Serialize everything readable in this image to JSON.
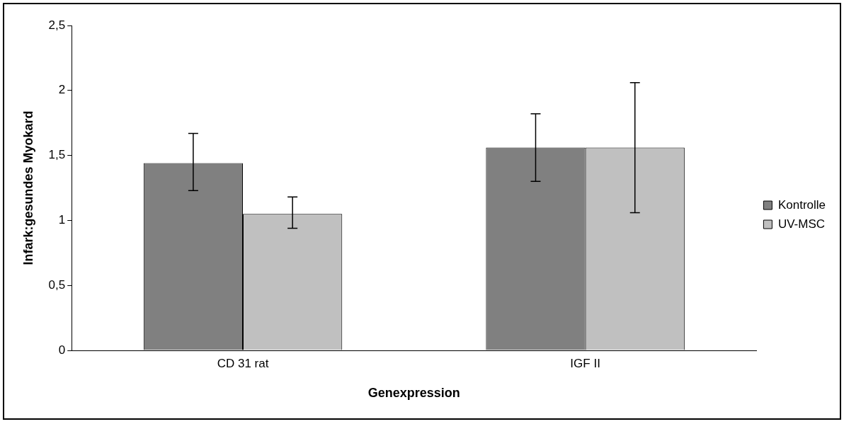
{
  "chart_data": {
    "type": "bar",
    "xlabel": "Genexpression",
    "ylabel": "Infark:gesundes Myokard",
    "categories": [
      "CD 31 rat",
      "IGF II"
    ],
    "series": [
      {
        "name": "Kontrolle",
        "color": "#808080",
        "values": [
          1.44,
          1.56
        ],
        "errors": [
          [
            1.23,
            1.67
          ],
          [
            1.3,
            1.82
          ]
        ]
      },
      {
        "name": "UV-MSC",
        "color": "#c0c0c0",
        "values": [
          1.05,
          1.56
        ],
        "errors": [
          [
            0.94,
            1.18
          ],
          [
            1.06,
            2.06
          ]
        ]
      }
    ],
    "ylim": [
      0,
      2.5
    ],
    "yticks": [
      0,
      {
        "value": 0.5,
        "label": "0,5"
      },
      1,
      {
        "value": 1.5,
        "label": "1,5"
      },
      2,
      {
        "value": 2.5,
        "label": "2,5"
      }
    ],
    "grid": false,
    "legend": "right"
  }
}
